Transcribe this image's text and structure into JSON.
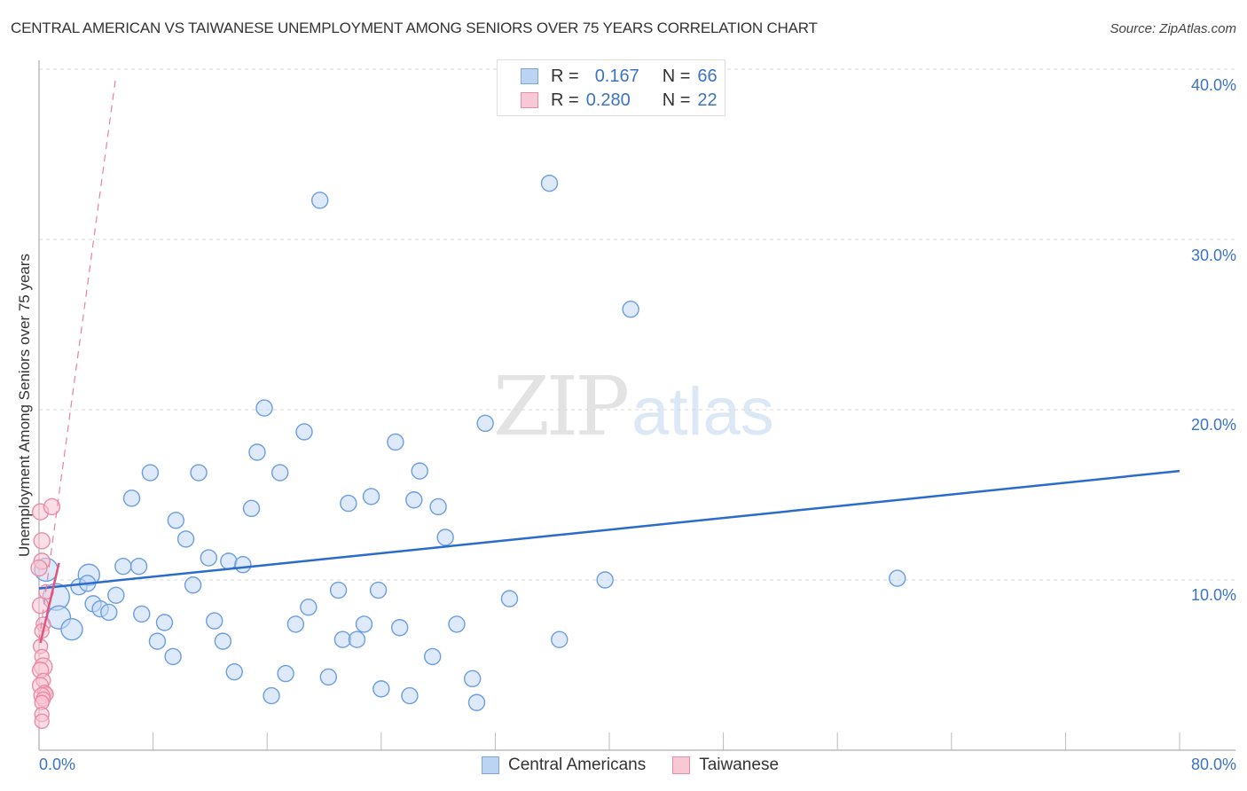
{
  "header": {
    "title": "CENTRAL AMERICAN VS TAIWANESE UNEMPLOYMENT AMONG SENIORS OVER 75 YEARS CORRELATION CHART",
    "source": "Source: ZipAtlas.com"
  },
  "watermark": {
    "zip": "ZIP",
    "atlas": "atlas"
  },
  "legend_top": {
    "rows": [
      {
        "r_label": "R =",
        "r_value": "0.167",
        "n_label": "N =",
        "n_value": "66",
        "color": "#a9c8f0"
      },
      {
        "r_label": "R =",
        "r_value": "0.280",
        "n_label": "N =",
        "n_value": "22",
        "color": "#f7bccb"
      }
    ]
  },
  "legend_bottom": {
    "items": [
      {
        "label": "Central Americans",
        "color": "#a9c8f0"
      },
      {
        "label": "Taiwanese",
        "color": "#f7bccb"
      }
    ]
  },
  "axes": {
    "ylabel": "Unemployment Among Seniors over 75 years",
    "yticks": [
      "40.0%",
      "30.0%",
      "20.0%",
      "10.0%"
    ],
    "xticks": [
      "0.0%",
      "80.0%"
    ]
  },
  "chart_data": {
    "type": "scatter",
    "title": "CENTRAL AMERICAN VS TAIWANESE UNEMPLOYMENT AMONG SENIORS OVER 75 YEARS CORRELATION CHART",
    "xlabel": "",
    "ylabel": "Unemployment Among Seniors over 75 years",
    "xlim": [
      0,
      80
    ],
    "ylim": [
      0,
      40
    ],
    "x_tick_labels": [
      "0.0%",
      "80.0%"
    ],
    "y_tick_labels": [
      "10.0%",
      "20.0%",
      "30.0%",
      "40.0%"
    ],
    "grid": {
      "horizontal_dashed": true,
      "at": [
        10,
        20,
        30,
        40
      ]
    },
    "legend_position": "top-center and bottom",
    "series": [
      {
        "name": "Central Americans",
        "color": "#a9c8f0",
        "stroke": "#5b92d9",
        "R": 0.167,
        "N": 66,
        "trend": {
          "x": [
            0,
            80
          ],
          "y": [
            9.5,
            16.4
          ],
          "style": "solid",
          "color": "#2a6bcc"
        },
        "points": [
          [
            0.5,
            10.6,
            12
          ],
          [
            1.2,
            9.0,
            14
          ],
          [
            1.4,
            7.8,
            12
          ],
          [
            2.3,
            7.1,
            11
          ],
          [
            3.5,
            10.3,
            11
          ],
          [
            2.8,
            9.6,
            8
          ],
          [
            3.4,
            9.8,
            8
          ],
          [
            3.8,
            8.6,
            8
          ],
          [
            4.3,
            8.3,
            8
          ],
          [
            4.9,
            8.1,
            8
          ],
          [
            5.4,
            9.1,
            8
          ],
          [
            5.9,
            10.8,
            8
          ],
          [
            6.5,
            14.8,
            8
          ],
          [
            7.0,
            10.8,
            8
          ],
          [
            7.2,
            8.0,
            8
          ],
          [
            7.8,
            16.3,
            8
          ],
          [
            8.3,
            6.4,
            8
          ],
          [
            8.8,
            7.5,
            8
          ],
          [
            9.4,
            5.5,
            8
          ],
          [
            9.6,
            13.5,
            8
          ],
          [
            10.3,
            12.4,
            8
          ],
          [
            10.8,
            9.7,
            8
          ],
          [
            11.2,
            16.3,
            8
          ],
          [
            11.9,
            11.3,
            8
          ],
          [
            12.3,
            7.6,
            8
          ],
          [
            12.9,
            6.4,
            8
          ],
          [
            13.3,
            11.1,
            8
          ],
          [
            13.7,
            4.6,
            8
          ],
          [
            14.3,
            10.9,
            8
          ],
          [
            14.9,
            14.2,
            8
          ],
          [
            15.3,
            17.5,
            8
          ],
          [
            15.8,
            20.1,
            8
          ],
          [
            16.3,
            3.2,
            8
          ],
          [
            16.9,
            16.3,
            8
          ],
          [
            17.3,
            4.5,
            8
          ],
          [
            18.0,
            7.4,
            8
          ],
          [
            18.6,
            18.7,
            8
          ],
          [
            18.9,
            8.4,
            8
          ],
          [
            19.7,
            32.3,
            8
          ],
          [
            20.3,
            4.3,
            8
          ],
          [
            21.0,
            9.4,
            8
          ],
          [
            21.3,
            6.5,
            8
          ],
          [
            21.7,
            14.5,
            8
          ],
          [
            22.3,
            6.5,
            8
          ],
          [
            22.8,
            7.4,
            8
          ],
          [
            23.3,
            14.9,
            8
          ],
          [
            23.8,
            9.4,
            8
          ],
          [
            24.0,
            3.6,
            8
          ],
          [
            25.0,
            18.1,
            8
          ],
          [
            25.3,
            7.2,
            8
          ],
          [
            26.0,
            3.2,
            8
          ],
          [
            26.3,
            14.7,
            8
          ],
          [
            26.7,
            16.4,
            8
          ],
          [
            27.6,
            5.5,
            8
          ],
          [
            28.0,
            14.3,
            8
          ],
          [
            28.5,
            12.5,
            8
          ],
          [
            29.3,
            7.4,
            8
          ],
          [
            30.4,
            4.2,
            8
          ],
          [
            30.7,
            2.8,
            8
          ],
          [
            31.3,
            19.2,
            8
          ],
          [
            33.0,
            8.9,
            8
          ],
          [
            35.8,
            33.3,
            8
          ],
          [
            36.5,
            6.5,
            8
          ],
          [
            39.7,
            10.0,
            8
          ],
          [
            41.5,
            25.9,
            8
          ],
          [
            60.2,
            10.1,
            8
          ]
        ]
      },
      {
        "name": "Taiwanese",
        "color": "#f7bccb",
        "stroke": "#ec8ba6",
        "R": 0.28,
        "N": 22,
        "trend": {
          "x": [
            0.1,
            1.4
          ],
          "y": [
            6.3,
            11.0
          ],
          "style": "solid",
          "color": "#e0547e",
          "extended_dashed": {
            "x": [
              0.0,
              5.4
            ],
            "y": [
              6.4,
              40.0
            ]
          }
        },
        "points": [
          [
            0.1,
            14.0,
            8
          ],
          [
            0.9,
            14.3,
            8
          ],
          [
            0.2,
            12.3,
            8
          ],
          [
            0.2,
            11.1,
            8
          ],
          [
            0.0,
            10.7,
            8
          ],
          [
            0.5,
            9.3,
            7
          ],
          [
            0.1,
            8.5,
            8
          ],
          [
            0.3,
            7.4,
            7
          ],
          [
            0.2,
            7.0,
            7
          ],
          [
            0.1,
            6.1,
            7
          ],
          [
            0.2,
            5.5,
            7
          ],
          [
            0.3,
            4.9,
            9
          ],
          [
            0.1,
            4.7,
            8
          ],
          [
            0.3,
            4.1,
            7
          ],
          [
            0.1,
            3.8,
            8
          ],
          [
            0.4,
            3.4,
            7
          ],
          [
            0.5,
            3.3,
            7
          ],
          [
            0.2,
            3.2,
            8
          ],
          [
            0.3,
            3.0,
            7
          ],
          [
            0.2,
            2.8,
            7
          ],
          [
            0.2,
            2.1,
            7
          ],
          [
            0.2,
            1.7,
            7
          ]
        ]
      }
    ]
  }
}
